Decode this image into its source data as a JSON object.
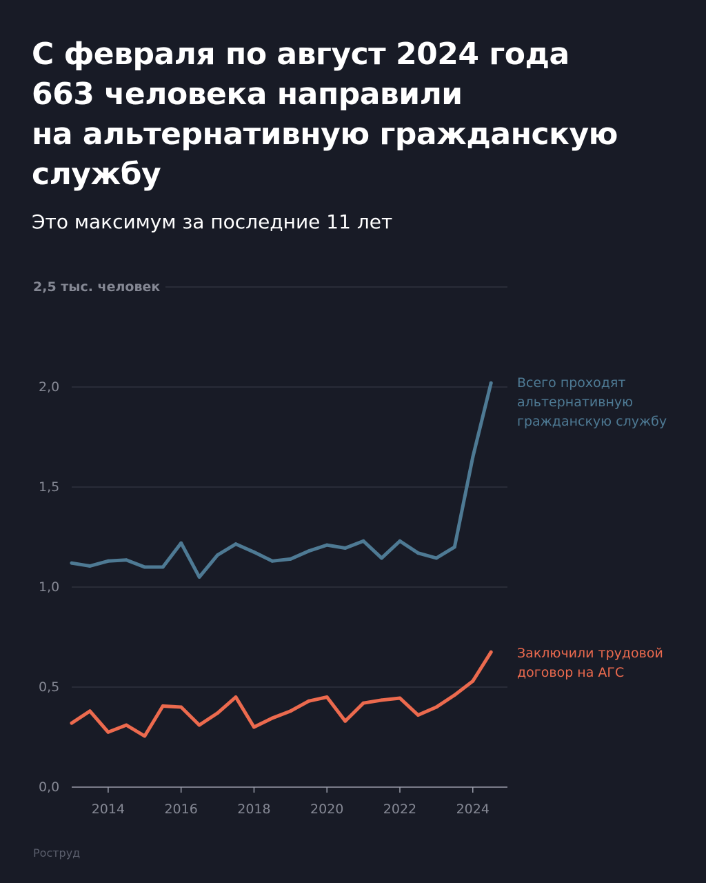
{
  "header": {
    "title_lines": [
      "С февраля по август 2024 года",
      "663 человека направили",
      "на альтернативную гражданскую",
      "службу"
    ],
    "subtitle": "Это максимум за последние 11 лет"
  },
  "source": "Роструд",
  "colors": {
    "background": "#181b26",
    "total_series": "#4e7a94",
    "contract_series": "#ec6a4e",
    "grid": "#3a3e4a",
    "tick_text": "#858894"
  },
  "chart_data": {
    "type": "line",
    "title": "С февраля по август 2024 года 663 человека направили на альтернативную гражданскую службу",
    "subtitle": "Это максимум за последние 11 лет",
    "ylabel": "тыс. человек",
    "y_unit_label": "2,5 тыс. человек",
    "ylim": [
      0,
      2.5
    ],
    "xlim": [
      2013.0,
      2024.95
    ],
    "y_ticks": [
      {
        "value": 0.0,
        "label": "0,0"
      },
      {
        "value": 0.5,
        "label": "0,5"
      },
      {
        "value": 1.0,
        "label": "1,0"
      },
      {
        "value": 1.5,
        "label": "1,5"
      },
      {
        "value": 2.0,
        "label": "2,0"
      }
    ],
    "x_ticks": [
      {
        "value": 2014,
        "label": "2014"
      },
      {
        "value": 2016,
        "label": "2016"
      },
      {
        "value": 2018,
        "label": "2018"
      },
      {
        "value": 2020,
        "label": "2020"
      },
      {
        "value": 2022,
        "label": "2022"
      },
      {
        "value": 2024,
        "label": "2024"
      }
    ],
    "grid": true,
    "x": [
      2013.0,
      2013.5,
      2014.0,
      2014.5,
      2015.0,
      2015.5,
      2016.0,
      2016.5,
      2017.0,
      2017.5,
      2018.0,
      2018.5,
      2019.0,
      2019.5,
      2020.0,
      2020.5,
      2021.0,
      2021.5,
      2022.0,
      2022.5,
      2023.0,
      2023.5,
      2024.0,
      2024.5
    ],
    "series": [
      {
        "name": "Всего проходят альтернативную гражданскую службу",
        "label_lines": [
          "Всего проходят",
          "альтернативную",
          "гражданскую службу"
        ],
        "color": "#4e7a94",
        "values": [
          1.12,
          1.105,
          1.13,
          1.135,
          1.1,
          1.1,
          1.22,
          1.05,
          1.16,
          1.215,
          1.175,
          1.13,
          1.14,
          1.18,
          1.21,
          1.195,
          1.23,
          1.145,
          1.23,
          1.17,
          1.145,
          1.2,
          1.65,
          2.02
        ]
      },
      {
        "name": "Заключили трудовой договор на АГС",
        "label_lines": [
          "Заключили трудовой",
          "договор на АГС"
        ],
        "color": "#ec6a4e",
        "values": [
          0.32,
          0.38,
          0.275,
          0.31,
          0.255,
          0.405,
          0.4,
          0.31,
          0.37,
          0.45,
          0.3,
          0.345,
          0.38,
          0.43,
          0.45,
          0.33,
          0.42,
          0.435,
          0.445,
          0.36,
          0.4,
          0.46,
          0.53,
          0.675
        ]
      }
    ]
  }
}
